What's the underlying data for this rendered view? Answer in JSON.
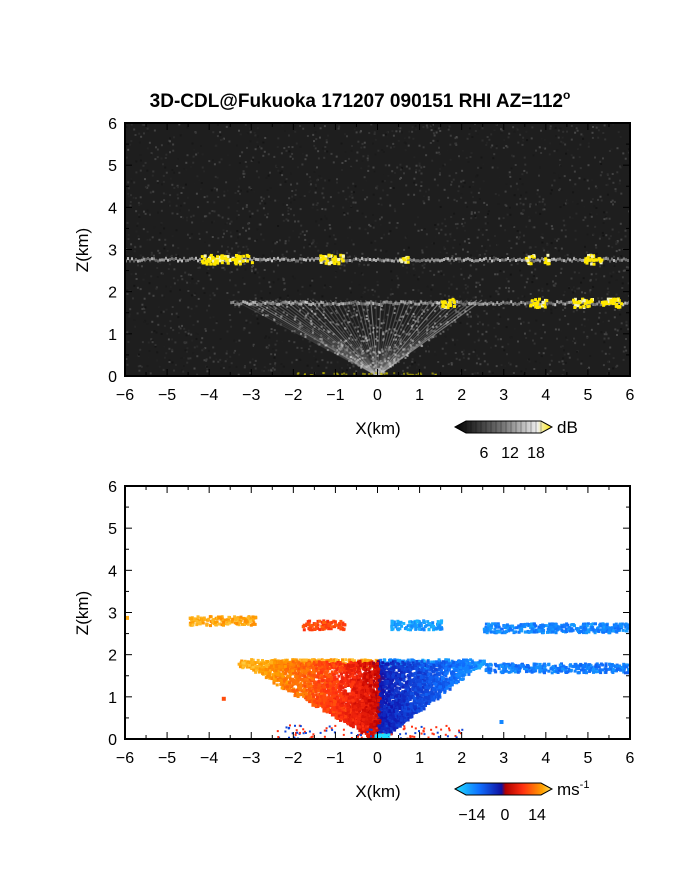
{
  "title_main": "3D-CDL@Fukuoka 171207 090151 RHI AZ=112",
  "title_deg": "o",
  "colors": {
    "background": "#ffffff",
    "panel_bg": "#1e1e1e",
    "echo_yellow": "#ffe800",
    "doppler_orange": "#ffa000",
    "doppler_red": "#f01010",
    "doppler_blue": "#1020e0",
    "doppler_cyan": "#10b0ee"
  },
  "chart_data": [
    {
      "type": "heatmap",
      "panel": "intensity",
      "xlabel": "X(km)",
      "ylabel": "Z(km)",
      "xlim": [
        -6,
        6
      ],
      "ylim": [
        0,
        6
      ],
      "x_ticks": [
        "-6",
        "-5",
        "-4",
        "-3",
        "-2",
        "-1",
        "0",
        "1",
        "2",
        "3",
        "4",
        "5",
        "6"
      ],
      "y_ticks": [
        "0",
        "1",
        "2",
        "3",
        "4",
        "5",
        "6"
      ],
      "colorbar": {
        "unit": "dB",
        "ticks": [
          "6",
          "12",
          "18"
        ],
        "range": [
          0,
          20
        ]
      },
      "layers": [
        {
          "z_km": 2.78,
          "x_from": -6,
          "x_to": 6,
          "note": "upper cloud layer",
          "strong_patches": [
            [
              -4.2,
              -3.0
            ],
            [
              -1.4,
              -0.8
            ],
            [
              0.5,
              0.7
            ],
            [
              3.5,
              3.7
            ],
            [
              3.95,
              4.05
            ],
            [
              4.9,
              5.3
            ]
          ]
        },
        {
          "z_km": 1.75,
          "x_from": -3.5,
          "x_to": 6,
          "note": "lower cloud layer",
          "strong_patches": [
            [
              1.5,
              1.8
            ],
            [
              3.6,
              4.0
            ],
            [
              4.6,
              5.1
            ],
            [
              5.3,
              5.8
            ]
          ]
        }
      ]
    },
    {
      "type": "heatmap",
      "panel": "doppler",
      "xlabel": "X(km)",
      "ylabel": "Z(km)",
      "xlim": [
        -6,
        6
      ],
      "ylim": [
        0,
        6
      ],
      "x_ticks": [
        "-6",
        "-5",
        "-4",
        "-3",
        "-2",
        "-1",
        "0",
        "1",
        "2",
        "3",
        "4",
        "5",
        "6"
      ],
      "y_ticks": [
        "0",
        "1",
        "2",
        "3",
        "4",
        "5",
        "6"
      ],
      "colorbar": {
        "unit": "ms",
        "unit_exp": "-1",
        "ticks": [
          "−14",
          "0",
          "14"
        ],
        "range": [
          -20,
          20
        ]
      },
      "patches": [
        {
          "x_from": -4.5,
          "x_to": -2.9,
          "z_km": 2.82,
          "velocity": 15
        },
        {
          "x_from": -1.8,
          "x_to": -0.8,
          "z_km": 2.72,
          "velocity": 8
        },
        {
          "x_from": 0.3,
          "x_to": 1.5,
          "z_km": 2.72,
          "velocity": -14
        },
        {
          "x_from": 2.5,
          "x_to": 6.0,
          "z_km": 2.65,
          "velocity": -12
        },
        {
          "x_from": -3.3,
          "x_to": 0.0,
          "z_km": 1.8,
          "velocity": 15
        },
        {
          "x_from": 0.0,
          "x_to": 2.5,
          "z_km": 1.8,
          "velocity": -13
        },
        {
          "x_from": 2.5,
          "x_to": 6.0,
          "z_km": 1.7,
          "velocity": -11
        }
      ]
    }
  ]
}
